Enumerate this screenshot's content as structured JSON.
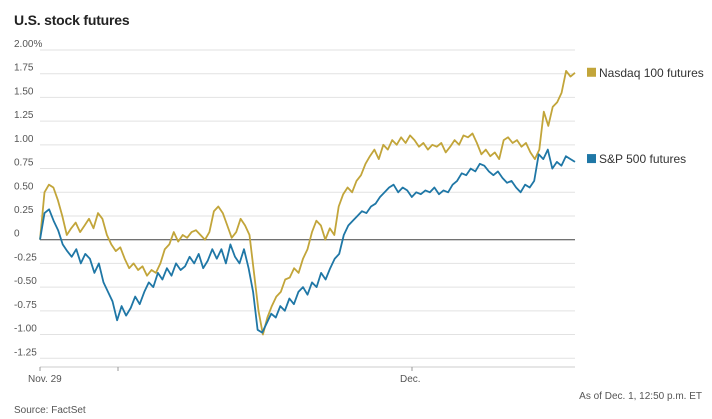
{
  "chart_data": {
    "type": "line",
    "title": "U.S. stock futures",
    "y_ticks": [
      "2.00%",
      "1.75",
      "1.50",
      "1.25",
      "1.00",
      "0.75",
      "0.50",
      "0.25",
      "0",
      "-0.25",
      "-0.50",
      "-0.75",
      "-1.00",
      "-1.25"
    ],
    "y_tick_values": [
      2.0,
      1.75,
      1.5,
      1.25,
      1.0,
      0.75,
      0.5,
      0.25,
      0,
      -0.25,
      -0.5,
      -0.75,
      -1.0,
      -1.25
    ],
    "ylim": [
      -1.3,
      2.0
    ],
    "x_ticks": [
      "Nov. 29",
      "Dec."
    ],
    "grid": true,
    "legend_placement": "right",
    "series": [
      {
        "name": "Nasdaq 100 futures",
        "color": "#c2a53a",
        "values": [
          0.0,
          0.5,
          0.58,
          0.55,
          0.42,
          0.25,
          0.05,
          0.12,
          0.18,
          0.08,
          0.15,
          0.22,
          0.12,
          0.28,
          0.22,
          0.05,
          -0.05,
          -0.12,
          -0.08,
          -0.2,
          -0.3,
          -0.25,
          -0.32,
          -0.28,
          -0.38,
          -0.32,
          -0.35,
          -0.25,
          -0.1,
          -0.05,
          0.08,
          -0.02,
          0.05,
          0.02,
          0.08,
          0.1,
          0.05,
          0.0,
          0.08,
          0.3,
          0.35,
          0.28,
          0.15,
          0.02,
          0.08,
          0.22,
          0.15,
          0.05,
          -0.35,
          -0.75,
          -1.0,
          -0.82,
          -0.7,
          -0.6,
          -0.55,
          -0.42,
          -0.4,
          -0.3,
          -0.35,
          -0.2,
          -0.1,
          0.08,
          0.2,
          0.15,
          0.0,
          0.12,
          0.05,
          0.35,
          0.48,
          0.55,
          0.5,
          0.62,
          0.68,
          0.8,
          0.88,
          0.95,
          0.85,
          1.0,
          0.95,
          1.05,
          1.0,
          1.08,
          1.02,
          1.1,
          1.05,
          0.98,
          1.02,
          0.95,
          1.0,
          0.98,
          1.02,
          0.92,
          0.98,
          1.05,
          1.0,
          1.1,
          1.08,
          1.12,
          1.02,
          0.9,
          0.95,
          0.88,
          0.92,
          0.85,
          1.05,
          1.08,
          1.02,
          1.05,
          0.98,
          1.02,
          0.92,
          0.85,
          0.95,
          1.35,
          1.2,
          1.4,
          1.45,
          1.55,
          1.78,
          1.72,
          1.76
        ]
      },
      {
        "name": "S&P 500 futures",
        "color": "#1f77a6",
        "values": [
          0.0,
          0.28,
          0.32,
          0.2,
          0.1,
          -0.05,
          -0.12,
          -0.18,
          -0.1,
          -0.25,
          -0.15,
          -0.2,
          -0.35,
          -0.25,
          -0.45,
          -0.55,
          -0.65,
          -0.85,
          -0.7,
          -0.8,
          -0.72,
          -0.6,
          -0.68,
          -0.55,
          -0.45,
          -0.5,
          -0.35,
          -0.42,
          -0.3,
          -0.38,
          -0.25,
          -0.32,
          -0.28,
          -0.18,
          -0.25,
          -0.15,
          -0.3,
          -0.22,
          -0.1,
          -0.2,
          -0.1,
          -0.25,
          -0.05,
          -0.18,
          -0.25,
          -0.1,
          -0.3,
          -0.55,
          -0.95,
          -0.98,
          -0.88,
          -0.78,
          -0.82,
          -0.7,
          -0.75,
          -0.62,
          -0.68,
          -0.55,
          -0.5,
          -0.58,
          -0.45,
          -0.5,
          -0.35,
          -0.42,
          -0.3,
          -0.2,
          -0.15,
          0.05,
          0.15,
          0.2,
          0.25,
          0.3,
          0.28,
          0.35,
          0.38,
          0.45,
          0.5,
          0.55,
          0.58,
          0.5,
          0.55,
          0.52,
          0.45,
          0.5,
          0.48,
          0.52,
          0.5,
          0.55,
          0.48,
          0.52,
          0.5,
          0.58,
          0.62,
          0.7,
          0.68,
          0.75,
          0.72,
          0.8,
          0.78,
          0.72,
          0.68,
          0.72,
          0.65,
          0.6,
          0.62,
          0.55,
          0.5,
          0.58,
          0.55,
          0.62,
          0.9,
          0.85,
          0.95,
          0.75,
          0.82,
          0.78,
          0.88,
          0.85,
          0.82
        ]
      }
    ]
  },
  "footer": {
    "as_of": "As of Dec. 1, 12:50 p.m. ET",
    "source": "Source: FactSet"
  }
}
